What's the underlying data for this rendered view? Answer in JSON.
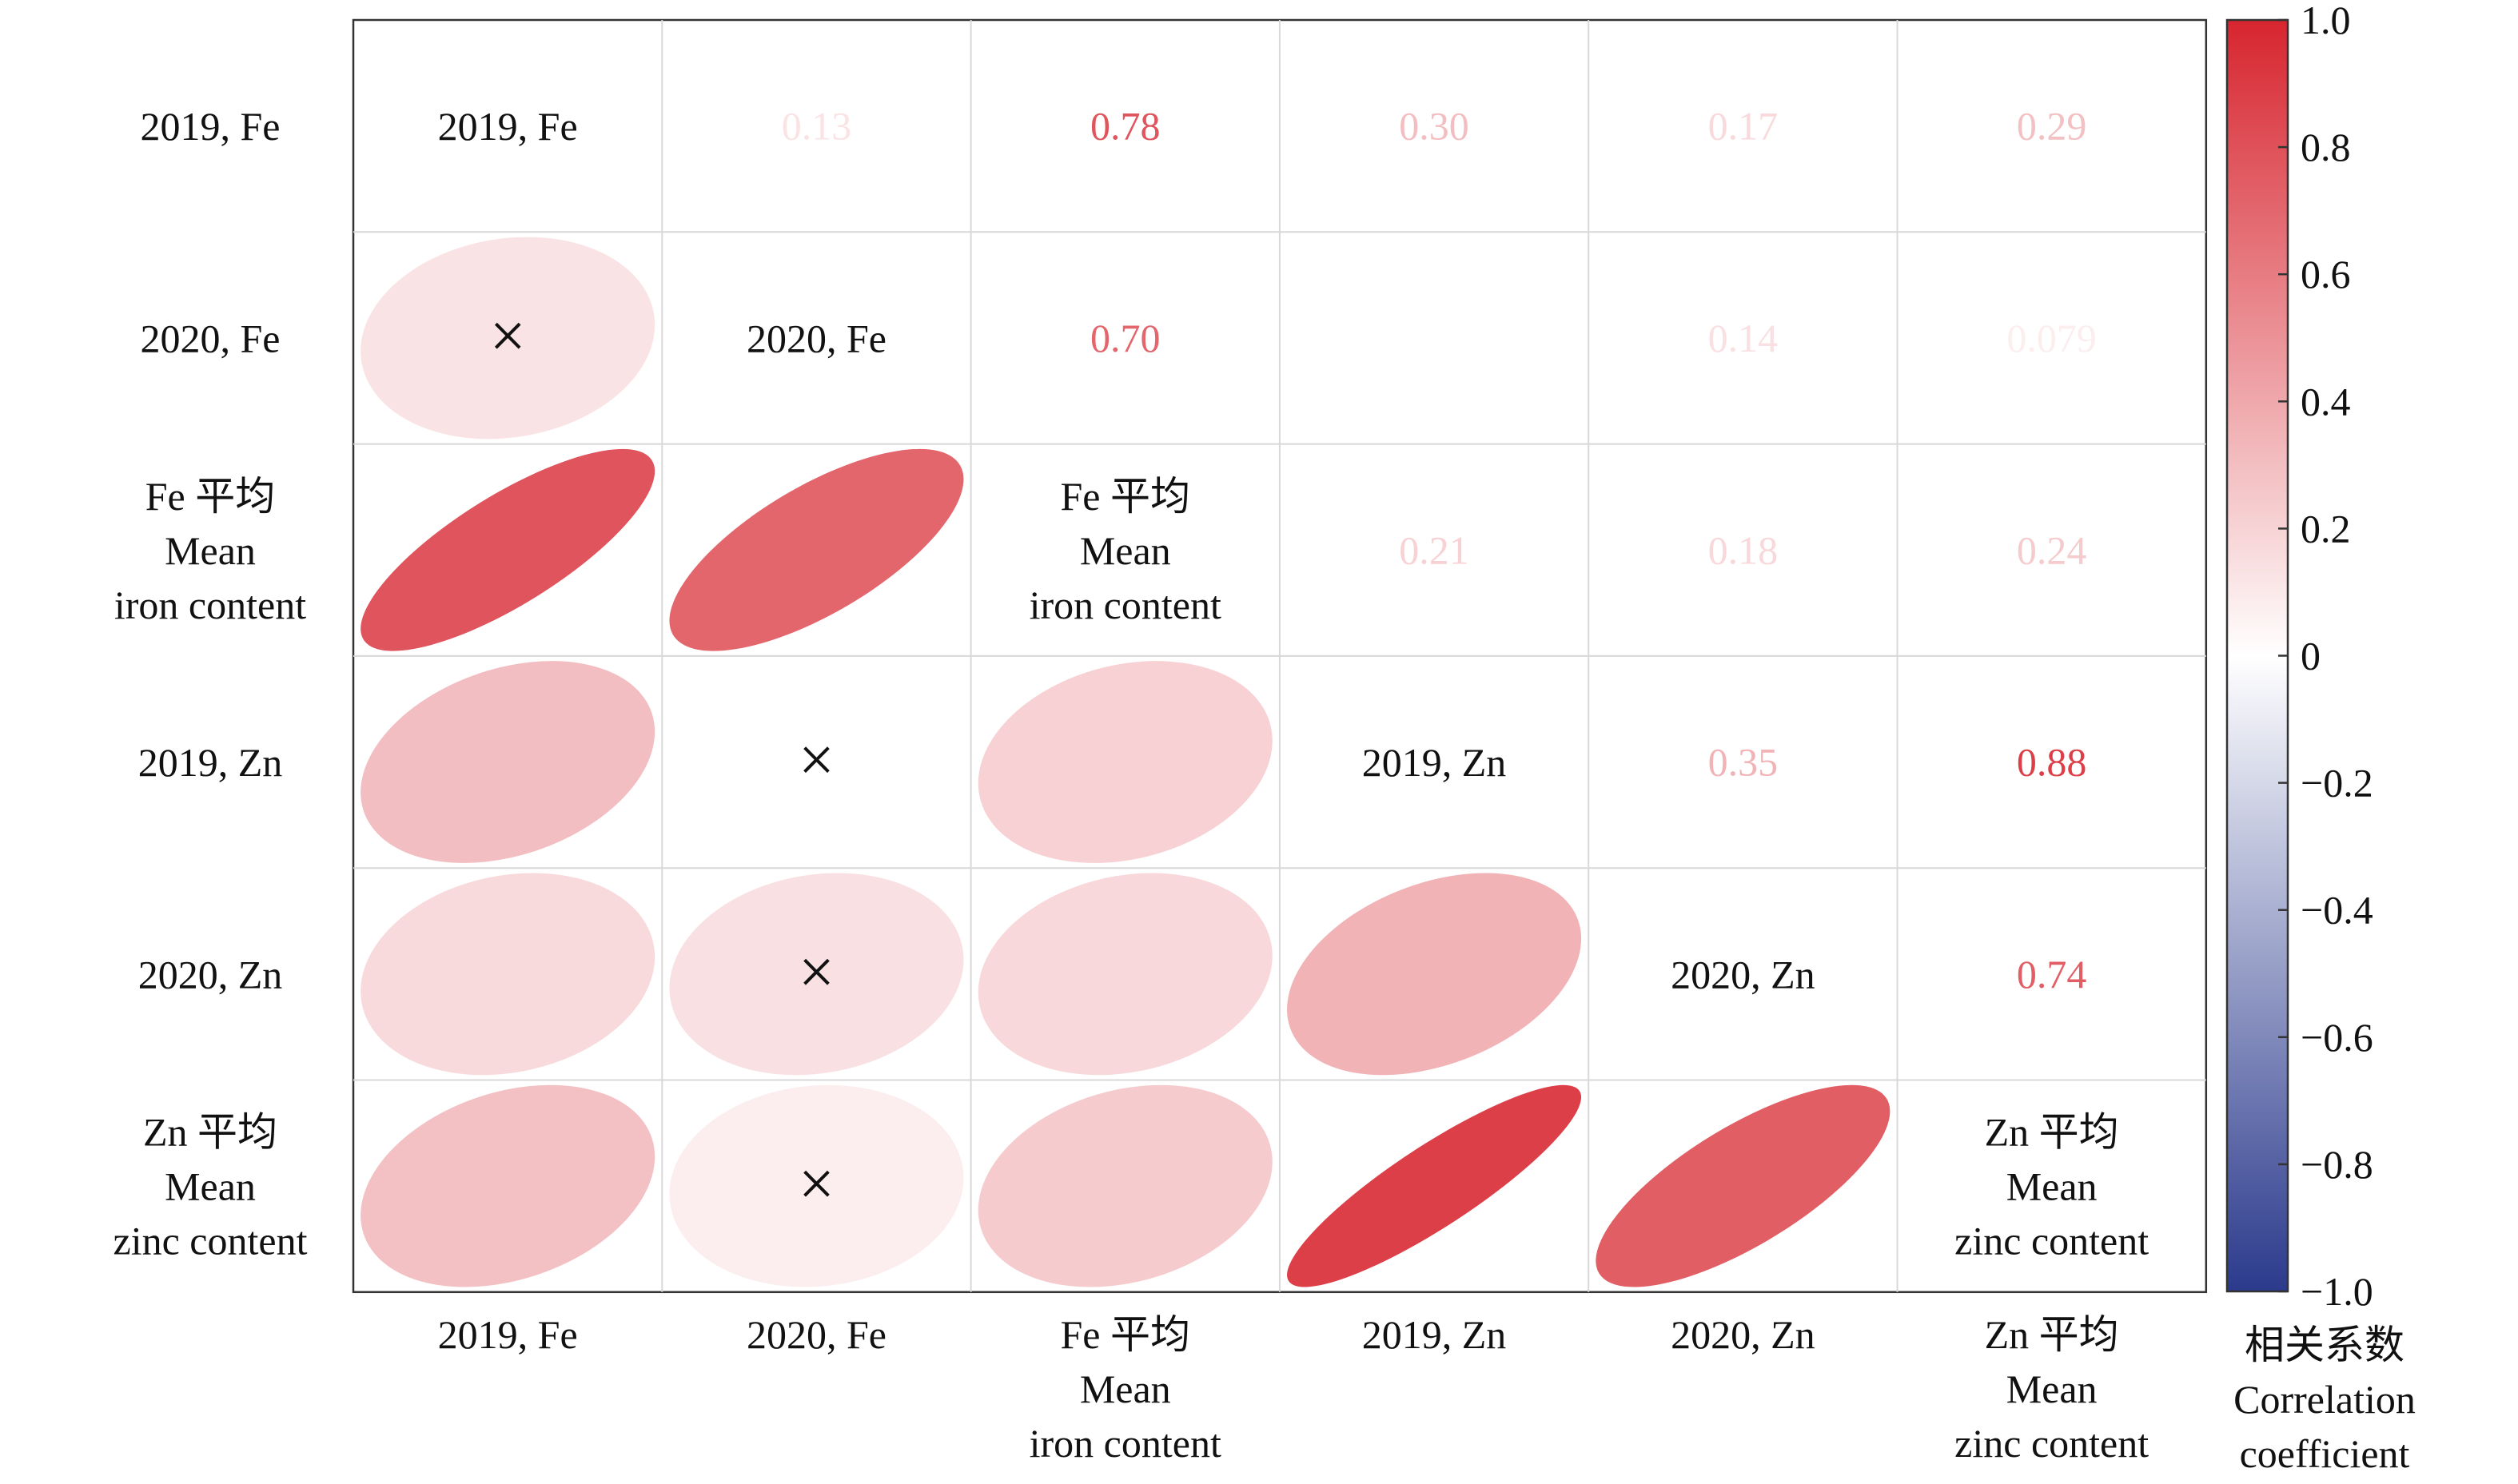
{
  "chart_data": {
    "type": "heatmap",
    "variables": [
      [
        "2019, Fe"
      ],
      [
        "2020, Fe"
      ],
      [
        "Fe 平均",
        "Mean",
        "iron content"
      ],
      [
        "2019, Zn"
      ],
      [
        "2020, Zn"
      ],
      [
        "Zn 平均",
        "Mean",
        "zinc content"
      ]
    ],
    "upper_labels": [
      {
        "row": 0,
        "col": 1,
        "text": "0.13"
      },
      {
        "row": 0,
        "col": 2,
        "text": "0.78"
      },
      {
        "row": 0,
        "col": 3,
        "text": "0.30"
      },
      {
        "row": 0,
        "col": 4,
        "text": "0.17"
      },
      {
        "row": 0,
        "col": 5,
        "text": "0.29"
      },
      {
        "row": 1,
        "col": 2,
        "text": "0.70"
      },
      {
        "row": 1,
        "col": 4,
        "text": "0.14"
      },
      {
        "row": 1,
        "col": 5,
        "text": "0.079"
      },
      {
        "row": 2,
        "col": 3,
        "text": "0.21"
      },
      {
        "row": 2,
        "col": 4,
        "text": "0.18"
      },
      {
        "row": 2,
        "col": 5,
        "text": "0.24"
      },
      {
        "row": 3,
        "col": 4,
        "text": "0.35"
      },
      {
        "row": 3,
        "col": 5,
        "text": "0.88"
      },
      {
        "row": 4,
        "col": 5,
        "text": "0.74"
      }
    ],
    "matrix": [
      [
        1.0,
        0.13,
        0.78,
        0.3,
        0.17,
        0.29
      ],
      [
        0.13,
        1.0,
        0.7,
        0.0,
        0.14,
        0.079
      ],
      [
        0.78,
        0.7,
        1.0,
        0.21,
        0.18,
        0.24
      ],
      [
        0.3,
        0.0,
        0.21,
        1.0,
        0.35,
        0.88
      ],
      [
        0.17,
        0.14,
        0.18,
        0.35,
        1.0,
        0.74
      ],
      [
        0.29,
        0.079,
        0.24,
        0.88,
        0.74,
        1.0
      ]
    ],
    "not_significant": [
      [
        1,
        0
      ],
      [
        3,
        1
      ],
      [
        4,
        1
      ],
      [
        5,
        1
      ]
    ],
    "colorbar": {
      "range": [
        -1.0,
        1.0
      ],
      "ticks": [
        "1.0",
        "0.8",
        "0.6",
        "0.4",
        "0.2",
        "0",
        "−0.2",
        "−0.4",
        "−0.6",
        "−0.8",
        "−1.0"
      ],
      "tick_values": [
        1.0,
        0.8,
        0.6,
        0.4,
        0.2,
        0,
        -0.2,
        -0.4,
        -0.6,
        -0.8,
        -1.0
      ],
      "label": [
        "相关系数",
        "Correlation",
        "coefficient"
      ],
      "colors": {
        "negative": "#2b3a8c",
        "zero": "#ffffff",
        "positive": "#d7252f"
      }
    },
    "marker": "×"
  }
}
